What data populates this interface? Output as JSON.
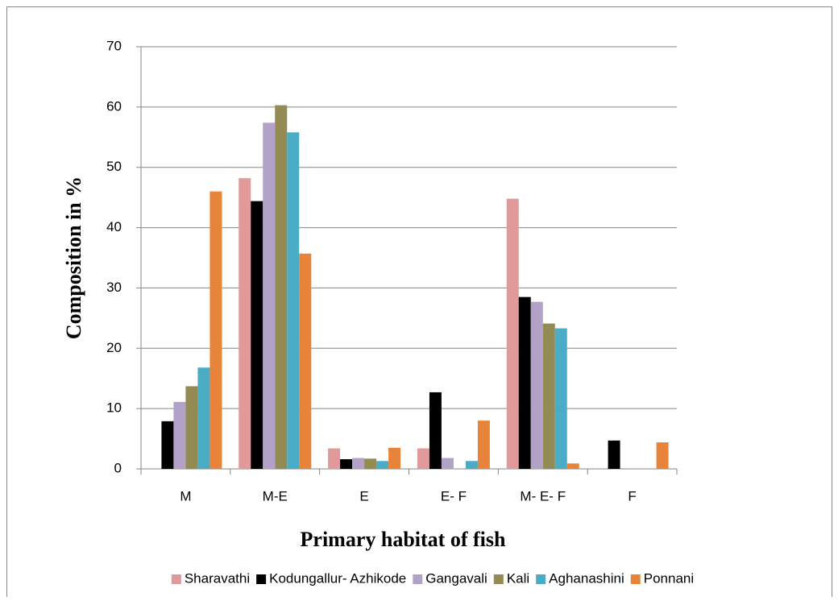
{
  "chart_data": {
    "type": "bar",
    "categories": [
      "M",
      "M-E",
      "E",
      "E- F",
      "M- E- F",
      "F"
    ],
    "series": [
      {
        "name": "Sharavathi",
        "color": "#e19a99",
        "values": [
          0,
          48.2,
          3.4,
          3.4,
          44.8,
          0
        ]
      },
      {
        "name": "Kodungallur- Azhikode",
        "color": "#000000",
        "values": [
          7.9,
          44.4,
          1.6,
          12.7,
          28.5,
          4.7
        ]
      },
      {
        "name": "Gangavali",
        "color": "#b3a2c7",
        "values": [
          11.1,
          57.4,
          1.8,
          1.8,
          27.7,
          0
        ]
      },
      {
        "name": "Kali",
        "color": "#948a54",
        "values": [
          13.7,
          60.3,
          1.7,
          0,
          24.1,
          0
        ]
      },
      {
        "name": "Aghanashini",
        "color": "#4bacc6",
        "values": [
          16.8,
          55.8,
          1.3,
          1.3,
          23.3,
          0
        ]
      },
      {
        "name": "Ponnani",
        "color": "#e8843a",
        "values": [
          46,
          35.7,
          3.5,
          8.0,
          0.9,
          4.4
        ]
      }
    ],
    "ylim": [
      0,
      70
    ],
    "yticks": [
      0,
      10,
      20,
      30,
      40,
      50,
      60,
      70
    ],
    "grid": true,
    "xlabel": "Primary habitat of fish",
    "ylabel": "Composition  in  %",
    "legend": "bottom"
  }
}
